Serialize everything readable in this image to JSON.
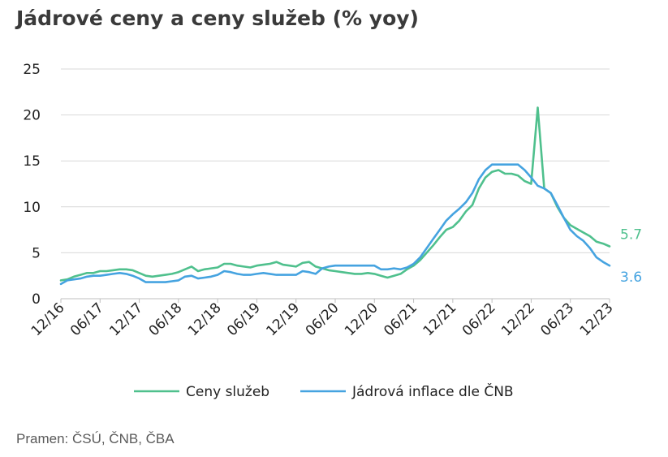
{
  "title": "Jádrové ceny a ceny služeb (% yoy)",
  "source": "Pramen: ČSÚ, ČNB, ČBA",
  "colors": {
    "services": "#4fc08d",
    "core": "#45a3e0",
    "grid": "#d9d9d9",
    "axis": "#bfbfbf"
  },
  "chart_data": {
    "type": "line",
    "title": "Jádrové ceny a ceny služeb (% yoy)",
    "xlabel": "",
    "ylabel": "",
    "ylim": [
      0,
      25
    ],
    "yticks": [
      "0",
      "5",
      "10",
      "15",
      "20",
      "25"
    ],
    "grid": "horizontal",
    "legend": "bottom",
    "x_tick_labels": [
      "12/16",
      "06/17",
      "12/17",
      "06/18",
      "12/18",
      "06/19",
      "12/19",
      "06/20",
      "12/20",
      "06/21",
      "12/21",
      "06/22",
      "12/22",
      "06/23",
      "12/23"
    ],
    "x_tick_month_index": [
      0,
      6,
      12,
      18,
      24,
      30,
      36,
      42,
      48,
      54,
      60,
      66,
      72,
      78,
      84
    ],
    "series": [
      {
        "name": "Ceny služeb",
        "end_label": "5.7",
        "values": [
          2.0,
          2.1,
          2.4,
          2.6,
          2.8,
          2.8,
          3.0,
          3.0,
          3.1,
          3.2,
          3.2,
          3.1,
          2.8,
          2.5,
          2.4,
          2.5,
          2.6,
          2.7,
          2.9,
          3.2,
          3.5,
          3.0,
          3.2,
          3.3,
          3.4,
          3.8,
          3.8,
          3.6,
          3.5,
          3.4,
          3.6,
          3.7,
          3.8,
          4.0,
          3.7,
          3.6,
          3.5,
          3.9,
          4.0,
          3.5,
          3.3,
          3.1,
          3.0,
          2.9,
          2.8,
          2.7,
          2.7,
          2.8,
          2.7,
          2.5,
          2.3,
          2.5,
          2.7,
          3.2,
          3.6,
          4.2,
          5.0,
          5.8,
          6.7,
          7.5,
          7.8,
          8.5,
          9.5,
          10.2,
          12.0,
          13.2,
          13.8,
          14.0,
          13.6,
          13.6,
          13.4,
          12.8,
          12.5,
          20.8,
          12.0,
          11.5,
          10.0,
          8.8,
          8.0,
          7.6,
          7.2,
          6.8,
          6.2,
          6.0,
          5.7
        ],
        "color": "#4fc08d"
      },
      {
        "name": "Jádrová inflace dle ČNB",
        "end_label": "3.6",
        "values": [
          1.6,
          2.0,
          2.1,
          2.2,
          2.4,
          2.5,
          2.5,
          2.6,
          2.7,
          2.8,
          2.7,
          2.5,
          2.2,
          1.8,
          1.8,
          1.8,
          1.8,
          1.9,
          2.0,
          2.4,
          2.5,
          2.2,
          2.3,
          2.4,
          2.6,
          3.0,
          2.9,
          2.7,
          2.6,
          2.6,
          2.7,
          2.8,
          2.7,
          2.6,
          2.6,
          2.6,
          2.6,
          3.0,
          2.9,
          2.7,
          3.3,
          3.5,
          3.6,
          3.6,
          3.6,
          3.6,
          3.6,
          3.6,
          3.6,
          3.2,
          3.2,
          3.3,
          3.2,
          3.4,
          3.8,
          4.5,
          5.5,
          6.5,
          7.5,
          8.5,
          9.2,
          9.8,
          10.5,
          11.5,
          13.0,
          14.0,
          14.6,
          14.6,
          14.6,
          14.6,
          14.6,
          14.0,
          13.2,
          12.3,
          12.0,
          11.5,
          10.2,
          8.8,
          7.5,
          6.8,
          6.3,
          5.5,
          4.5,
          4.0,
          3.6
        ],
        "color": "#45a3e0"
      }
    ]
  }
}
